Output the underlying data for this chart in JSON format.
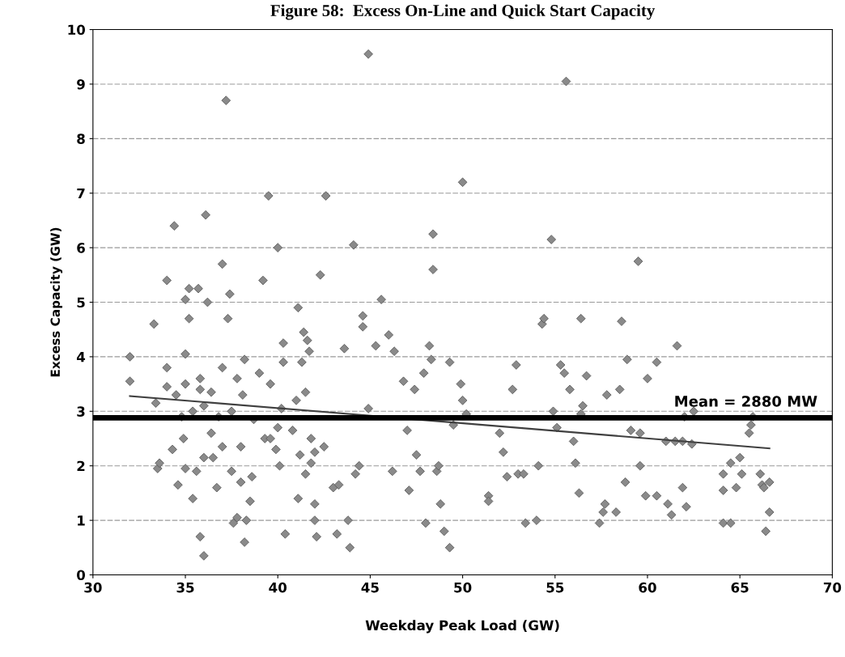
{
  "chart_data": {
    "type": "scatter",
    "title": "Figure 58:  Excess On-Line and Quick Start Capacity",
    "xlabel": "Weekday Peak Load (GW)",
    "ylabel": "Excess Capacity (GW)",
    "xlim": [
      30,
      70
    ],
    "xticks": [
      30,
      35,
      40,
      45,
      50,
      55,
      60,
      65,
      70
    ],
    "ylim": [
      0,
      10
    ],
    "yticks": [
      0,
      1,
      2,
      3,
      4,
      5,
      6,
      7,
      8,
      9,
      10
    ],
    "grid": "y",
    "series": [
      {
        "marker": "diamond",
        "color": "#8a8a8a",
        "x": [
          32,
          32,
          33.3,
          33.4,
          33.5,
          33.6,
          34,
          34,
          34,
          34.3,
          34.4,
          34.5,
          34.6,
          34.8,
          34.9,
          35,
          35,
          35,
          35,
          35.2,
          35.2,
          35.4,
          35.4,
          35.6,
          35.7,
          35.8,
          35.8,
          35.8,
          36,
          36,
          36,
          36.1,
          36.2,
          36.4,
          36.4,
          36.5,
          36.7,
          36.8,
          37,
          37,
          37,
          37.2,
          37.3,
          37.4,
          37.5,
          37.5,
          37.6,
          37.8,
          37.8,
          38,
          38,
          38.1,
          38.2,
          38.2,
          38.3,
          38.5,
          38.6,
          38.7,
          39,
          39.2,
          39.3,
          39.5,
          39.6,
          39.6,
          39.9,
          40,
          40,
          40.1,
          40.2,
          40.3,
          40.3,
          40.4,
          40.8,
          41,
          41.1,
          41.1,
          41.2,
          41.3,
          41.4,
          41.5,
          41.5,
          41.6,
          41.7,
          41.8,
          41.8,
          42,
          42,
          42,
          42.1,
          42.3,
          42.5,
          42.6,
          43,
          43.2,
          43.3,
          43.6,
          43.8,
          43.9,
          44.1,
          44.2,
          44.4,
          44.6,
          44.6,
          44.9,
          44.9,
          45.3,
          45.6,
          46,
          46.2,
          46.3,
          46.8,
          47,
          47.1,
          47.4,
          47.5,
          47.7,
          47.9,
          48,
          48.2,
          48.3,
          48.4,
          48.4,
          48.6,
          48.7,
          48.8,
          49,
          49.3,
          49.3,
          49.5,
          49.9,
          50,
          50,
          50.2,
          51.4,
          51.4,
          52,
          52.2,
          52.4,
          52.7,
          52.9,
          53,
          53.3,
          53.4,
          54,
          54.1,
          54.3,
          54.4,
          54.8,
          54.9,
          55.1,
          55.3,
          55.5,
          55.6,
          55.8,
          56,
          56.1,
          56.3,
          56.4,
          56.4,
          56.5,
          56.7,
          57.4,
          57.6,
          57.7,
          57.8,
          58.3,
          58.5,
          58.6,
          58.8,
          58.9,
          59.1,
          59.5,
          59.6,
          59.6,
          59.9,
          60,
          60.5,
          60.5,
          61,
          61.1,
          61.3,
          61.5,
          61.6,
          61.9,
          61.9,
          62,
          62.1,
          62.4,
          62.5,
          64.1,
          64.1,
          64.1,
          64.5,
          64.5,
          64.8,
          65,
          65.1,
          65.5,
          65.6,
          65.7,
          66.1,
          66.2,
          66.3,
          66.4,
          66.6,
          66.6
        ],
        "values": [
          4.0,
          3.55,
          4.6,
          3.15,
          1.95,
          2.05,
          5.4,
          3.8,
          3.45,
          2.3,
          6.4,
          3.3,
          1.65,
          2.9,
          2.5,
          4.05,
          3.5,
          1.95,
          5.05,
          4.7,
          5.25,
          1.4,
          3.0,
          1.9,
          5.25,
          3.4,
          3.6,
          0.7,
          3.1,
          2.15,
          0.35,
          6.6,
          5.0,
          2.6,
          3.35,
          2.15,
          1.6,
          2.9,
          5.7,
          3.8,
          2.35,
          8.7,
          4.7,
          5.15,
          1.9,
          3.0,
          0.95,
          1.05,
          3.6,
          2.35,
          1.7,
          3.3,
          3.95,
          0.6,
          1.0,
          1.35,
          1.8,
          2.85,
          3.7,
          5.4,
          2.5,
          6.95,
          3.5,
          2.5,
          2.3,
          6.0,
          2.7,
          2.0,
          3.05,
          4.25,
          3.9,
          0.75,
          2.65,
          3.2,
          1.4,
          4.9,
          2.2,
          3.9,
          4.45,
          1.85,
          3.35,
          4.3,
          4.1,
          2.05,
          2.5,
          1.0,
          1.3,
          2.25,
          0.7,
          5.5,
          2.35,
          6.95,
          1.6,
          0.75,
          1.65,
          4.15,
          1.0,
          0.5,
          6.05,
          1.85,
          2.0,
          4.75,
          4.55,
          9.55,
          3.05,
          4.2,
          5.05,
          4.4,
          1.9,
          4.1,
          3.55,
          2.65,
          1.55,
          3.4,
          2.2,
          1.9,
          3.7,
          0.95,
          4.2,
          3.95,
          6.25,
          5.6,
          1.9,
          2.0,
          1.3,
          0.8,
          3.9,
          0.5,
          2.75,
          3.5,
          3.2,
          7.2,
          2.95,
          1.45,
          1.35,
          2.6,
          2.25,
          1.8,
          3.4,
          3.85,
          1.85,
          1.85,
          0.95,
          1.0,
          2.0,
          4.6,
          4.7,
          6.15,
          3.0,
          2.7,
          3.85,
          3.7,
          9.05,
          3.4,
          2.45,
          2.05,
          1.5,
          4.7,
          2.95,
          3.1,
          3.65,
          0.95,
          1.15,
          1.3,
          3.3,
          1.15,
          3.4,
          4.65,
          1.7,
          3.95,
          2.65,
          5.75,
          2.6,
          2.0,
          1.45,
          3.6,
          1.45,
          3.9,
          2.45,
          1.3,
          1.1,
          2.45,
          4.2,
          2.45,
          1.6,
          2.9,
          1.25,
          2.4,
          3.0,
          1.85,
          1.55,
          0.95,
          0.95,
          2.05,
          1.6,
          2.15,
          1.85,
          2.6,
          2.75,
          2.9,
          1.85,
          1.65,
          1.6,
          0.8,
          1.7,
          1.15
        ]
      },
      {
        "type": "line",
        "color": "#404040",
        "x": [
          32,
          66.6
        ],
        "values": [
          3.28,
          2.32
        ]
      }
    ],
    "ref_lines": [
      {
        "axis": "y",
        "value": 2.88,
        "label": "Mean = 2880 MW",
        "color": "#000000"
      }
    ]
  }
}
